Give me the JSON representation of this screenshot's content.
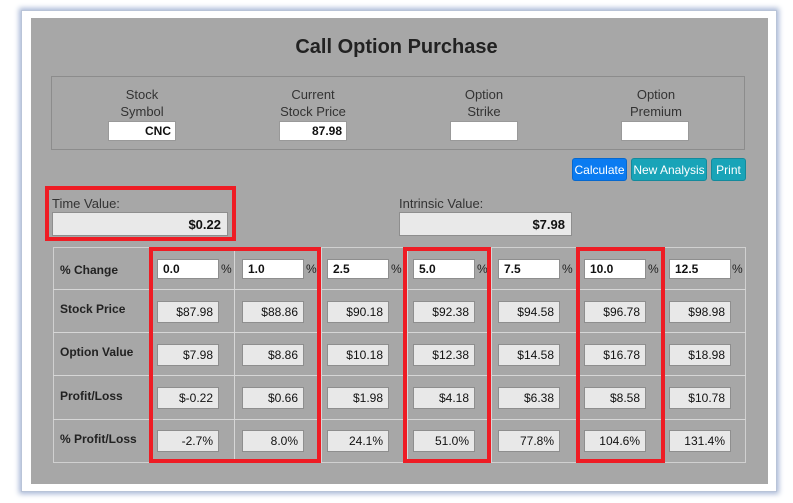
{
  "title": "Call Option Purchase",
  "inputs": [
    {
      "label1": "Stock",
      "label2": "Symbol",
      "value": "CNC"
    },
    {
      "label1": "Current",
      "label2": "Stock Price",
      "value": "87.98"
    },
    {
      "label1": "Option",
      "label2": "Strike",
      "value": ""
    },
    {
      "label1": "Option",
      "label2": "Premium",
      "value": ""
    }
  ],
  "buttons": {
    "calculate": "Calculate",
    "new_analysis": "New Analysis",
    "print": "Print"
  },
  "time_value": {
    "label": "Time Value:",
    "value": "$0.22"
  },
  "intrinsic_value": {
    "label": "Intrinsic Value:",
    "value": "$7.98"
  },
  "rows": {
    "pct_change": "% Change",
    "stock_price": "Stock Price",
    "option_value": "Option Value",
    "profit_loss": "Profit/Loss",
    "pct_profit_loss": "% Profit/Loss"
  },
  "percent_sign": "%",
  "columns": [
    {
      "pct": "0.0",
      "stock": "$87.98",
      "option": "$7.98",
      "pl": "$-0.22",
      "pctpl": "-2.7%"
    },
    {
      "pct": "1.0",
      "stock": "$88.86",
      "option": "$8.86",
      "pl": "$0.66",
      "pctpl": "8.0%"
    },
    {
      "pct": "2.5",
      "stock": "$90.18",
      "option": "$10.18",
      "pl": "$1.98",
      "pctpl": "24.1%"
    },
    {
      "pct": "5.0",
      "stock": "$92.38",
      "option": "$12.38",
      "pl": "$4.18",
      "pctpl": "51.0%"
    },
    {
      "pct": "7.5",
      "stock": "$94.58",
      "option": "$14.58",
      "pl": "$6.38",
      "pctpl": "77.8%"
    },
    {
      "pct": "10.0",
      "stock": "$96.78",
      "option": "$16.78",
      "pl": "$8.58",
      "pctpl": "104.6%"
    },
    {
      "pct": "12.5",
      "stock": "$98.98",
      "option": "$18.98",
      "pl": "$10.78",
      "pctpl": "131.4%"
    }
  ],
  "colors": {
    "highlight": "#ee1c24",
    "panel": "#a7a7a7",
    "button_blue": "#0a7bf1",
    "button_teal": "#19a4b8"
  }
}
